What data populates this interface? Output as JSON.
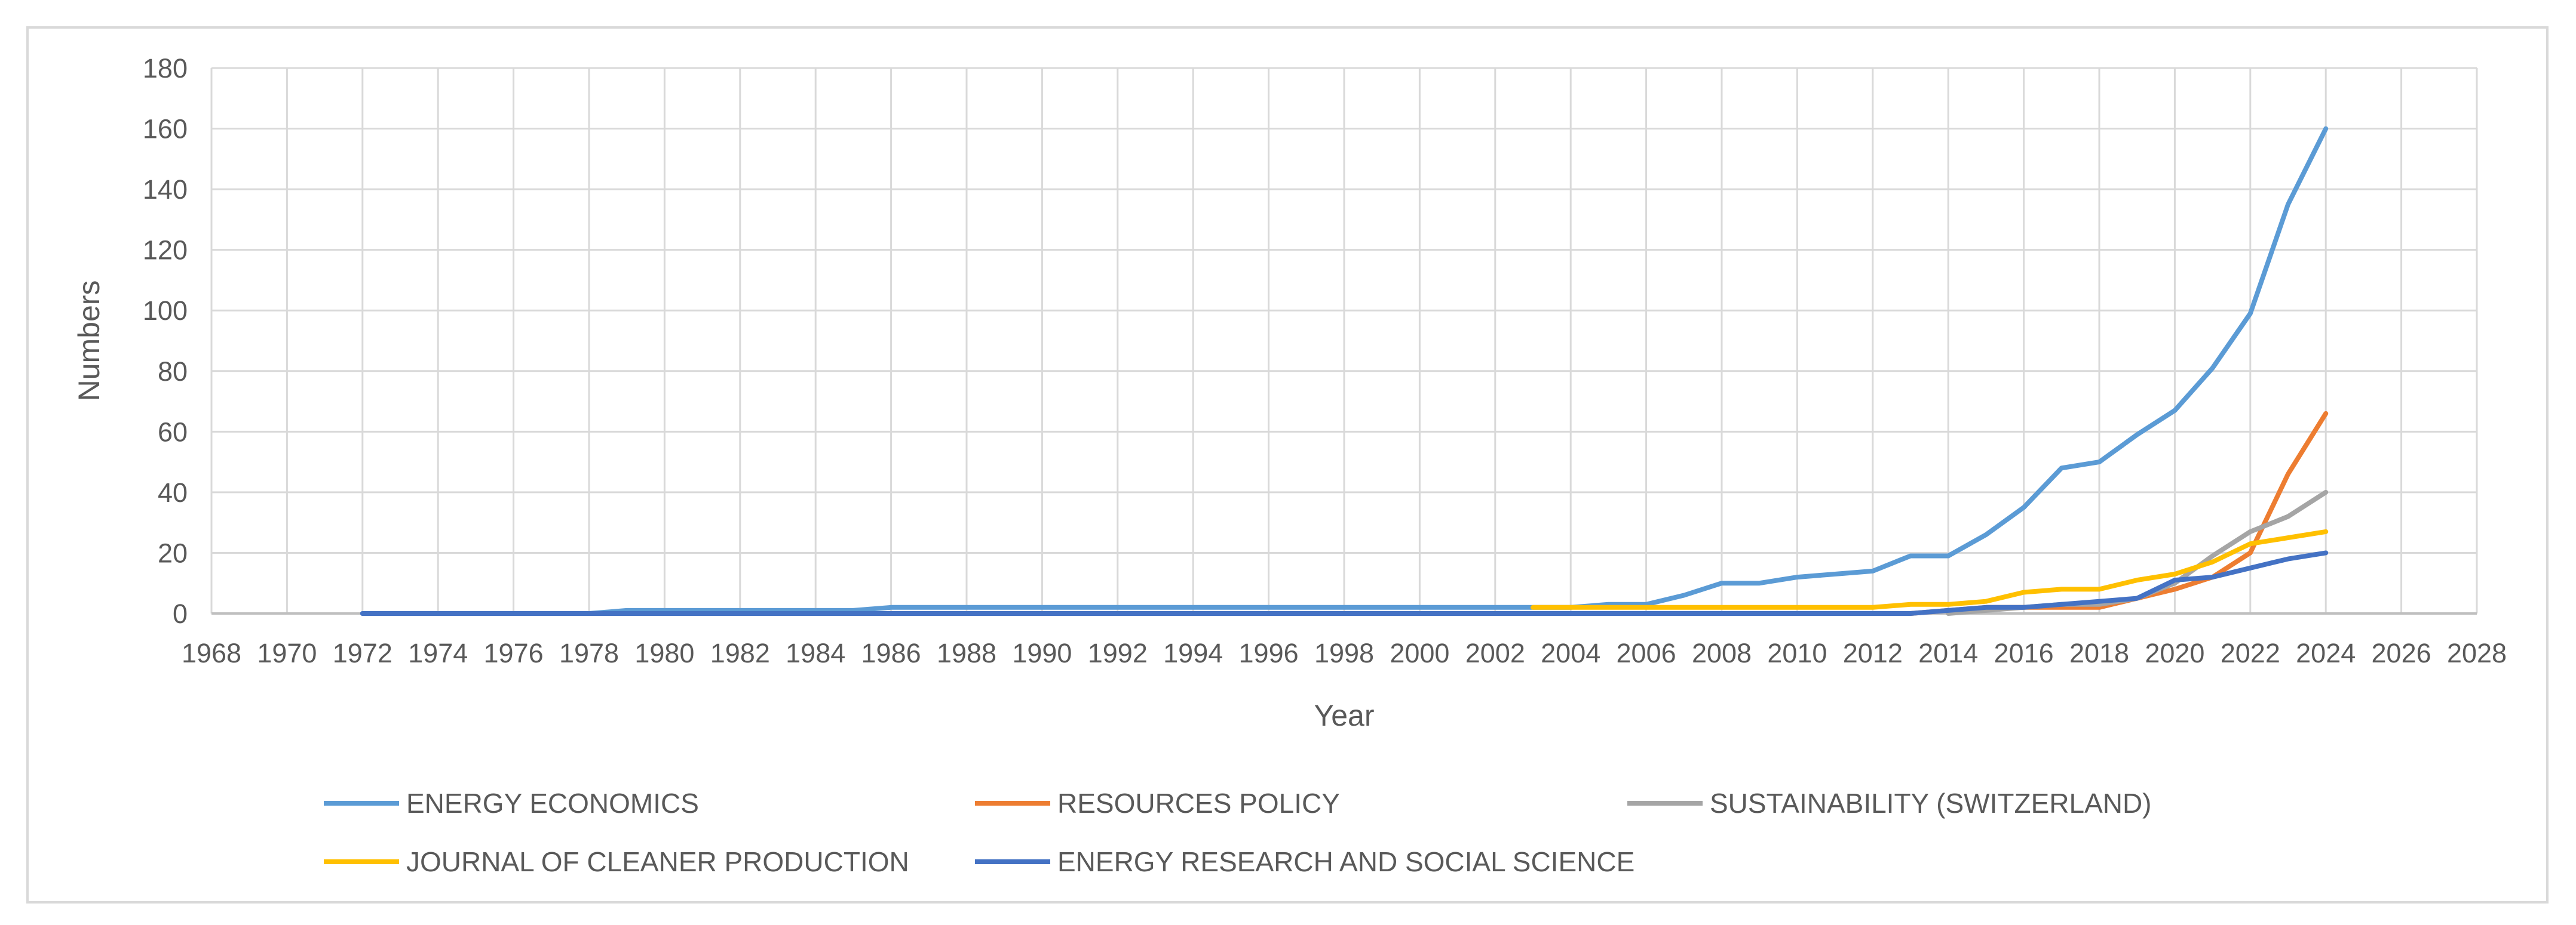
{
  "chart_data": {
    "type": "line",
    "title": "",
    "xlabel": "Year",
    "ylabel": "Numbers",
    "xlim": [
      1968,
      2028
    ],
    "ylim": [
      0,
      180
    ],
    "x_ticks": [
      1968,
      1970,
      1972,
      1974,
      1976,
      1978,
      1980,
      1982,
      1984,
      1986,
      1988,
      1990,
      1992,
      1994,
      1996,
      1998,
      2000,
      2002,
      2004,
      2006,
      2008,
      2010,
      2012,
      2014,
      2016,
      2018,
      2020,
      2022,
      2024,
      2026,
      2028
    ],
    "y_ticks": [
      0,
      20,
      40,
      60,
      80,
      100,
      120,
      140,
      160,
      180
    ],
    "grid": true,
    "legend_position": "bottom",
    "series": [
      {
        "name": "ENERGY ECONOMICS",
        "color": "#5B9BD5",
        "points": [
          [
            1972,
            0
          ],
          [
            1973,
            0
          ],
          [
            1974,
            0
          ],
          [
            1975,
            0
          ],
          [
            1976,
            0
          ],
          [
            1977,
            0
          ],
          [
            1978,
            0
          ],
          [
            1979,
            1
          ],
          [
            1980,
            1
          ],
          [
            1981,
            1
          ],
          [
            1982,
            1
          ],
          [
            1983,
            1
          ],
          [
            1984,
            1
          ],
          [
            1985,
            1
          ],
          [
            1986,
            2
          ],
          [
            1987,
            2
          ],
          [
            1988,
            2
          ],
          [
            1989,
            2
          ],
          [
            1990,
            2
          ],
          [
            1991,
            2
          ],
          [
            1992,
            2
          ],
          [
            1993,
            2
          ],
          [
            1994,
            2
          ],
          [
            1995,
            2
          ],
          [
            1996,
            2
          ],
          [
            1997,
            2
          ],
          [
            1998,
            2
          ],
          [
            1999,
            2
          ],
          [
            2000,
            2
          ],
          [
            2001,
            2
          ],
          [
            2002,
            2
          ],
          [
            2003,
            2
          ],
          [
            2004,
            2
          ],
          [
            2005,
            3
          ],
          [
            2006,
            3
          ],
          [
            2007,
            6
          ],
          [
            2008,
            10
          ],
          [
            2009,
            10
          ],
          [
            2010,
            12
          ],
          [
            2011,
            13
          ],
          [
            2012,
            14
          ],
          [
            2013,
            19
          ],
          [
            2014,
            19
          ],
          [
            2015,
            26
          ],
          [
            2016,
            35
          ],
          [
            2017,
            48
          ],
          [
            2018,
            50
          ],
          [
            2019,
            59
          ],
          [
            2020,
            67
          ],
          [
            2021,
            81
          ],
          [
            2022,
            99
          ],
          [
            2023,
            135
          ],
          [
            2024,
            160
          ]
        ]
      },
      {
        "name": "RESOURCES POLICY",
        "color": "#ED7D31",
        "points": [
          [
            2010,
            0
          ],
          [
            2011,
            0
          ],
          [
            2012,
            0
          ],
          [
            2013,
            0
          ],
          [
            2014,
            1
          ],
          [
            2015,
            2
          ],
          [
            2016,
            2
          ],
          [
            2017,
            2
          ],
          [
            2018,
            2
          ],
          [
            2019,
            5
          ],
          [
            2020,
            8
          ],
          [
            2021,
            12
          ],
          [
            2022,
            20
          ],
          [
            2023,
            46
          ],
          [
            2024,
            66
          ]
        ]
      },
      {
        "name": "SUSTAINABILITY (SWITZERLAND)",
        "color": "#A5A5A5",
        "points": [
          [
            2014,
            0
          ],
          [
            2015,
            1
          ],
          [
            2016,
            2
          ],
          [
            2017,
            3
          ],
          [
            2018,
            3
          ],
          [
            2019,
            5
          ],
          [
            2020,
            10
          ],
          [
            2021,
            19
          ],
          [
            2022,
            27
          ],
          [
            2023,
            32
          ],
          [
            2024,
            40
          ]
        ]
      },
      {
        "name": "JOURNAL OF CLEANER PRODUCTION",
        "color": "#FFC000",
        "points": [
          [
            2003,
            2
          ],
          [
            2004,
            2
          ],
          [
            2005,
            2
          ],
          [
            2006,
            2
          ],
          [
            2007,
            2
          ],
          [
            2008,
            2
          ],
          [
            2009,
            2
          ],
          [
            2010,
            2
          ],
          [
            2011,
            2
          ],
          [
            2012,
            2
          ],
          [
            2013,
            3
          ],
          [
            2014,
            3
          ],
          [
            2015,
            4
          ],
          [
            2016,
            7
          ],
          [
            2017,
            8
          ],
          [
            2018,
            8
          ],
          [
            2019,
            11
          ],
          [
            2020,
            13
          ],
          [
            2021,
            17
          ],
          [
            2022,
            23
          ],
          [
            2023,
            25
          ],
          [
            2024,
            27
          ]
        ]
      },
      {
        "name": "ENERGY RESEARCH AND SOCIAL SCIENCE",
        "color": "#4472C4",
        "points": [
          [
            1972,
            0
          ],
          [
            1975,
            0
          ],
          [
            1980,
            0
          ],
          [
            1985,
            0
          ],
          [
            1990,
            0
          ],
          [
            1995,
            0
          ],
          [
            2000,
            0
          ],
          [
            2005,
            0
          ],
          [
            2010,
            0
          ],
          [
            2012,
            0
          ],
          [
            2013,
            0
          ],
          [
            2014,
            1
          ],
          [
            2015,
            2
          ],
          [
            2016,
            2
          ],
          [
            2017,
            3
          ],
          [
            2018,
            4
          ],
          [
            2019,
            5
          ],
          [
            2020,
            11
          ],
          [
            2021,
            12
          ],
          [
            2022,
            15
          ],
          [
            2023,
            18
          ],
          [
            2024,
            20
          ]
        ]
      }
    ]
  }
}
